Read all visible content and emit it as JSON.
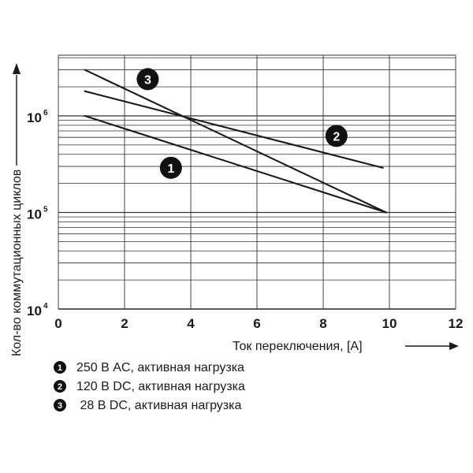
{
  "chart_data": {
    "type": "line",
    "xlabel": "Ток переключения, [A]",
    "ylabel": "Кол-во коммутационных циклов",
    "xlim": [
      0,
      12
    ],
    "ylim": [
      10000,
      4000000
    ],
    "y_scale": "log",
    "grid": true,
    "x_ticks": [
      "0",
      "2",
      "4",
      "6",
      "8",
      "10",
      "12"
    ],
    "y_ticks": [
      {
        "base": "10",
        "exp": "4",
        "value": 10000
      },
      {
        "base": "10",
        "exp": "5",
        "value": 100000
      },
      {
        "base": "10",
        "exp": "6",
        "value": 1000000
      }
    ],
    "series": [
      {
        "marker": "1",
        "name": "250 В AC, активная нагрузка",
        "color": "#1a1a1a",
        "x": [
          0.8,
          9.9
        ],
        "y": [
          1000000,
          100000
        ],
        "label_at": {
          "x": 3.4,
          "y": 290000
        }
      },
      {
        "marker": "2",
        "name": "120 В DC, активная нагрузка",
        "color": "#1a1a1a",
        "x": [
          0.8,
          9.8
        ],
        "y": [
          1800000,
          290000
        ],
        "label_at": {
          "x": 8.4,
          "y": 620000
        }
      },
      {
        "marker": "3",
        "name": "28 В DC, активная нагрузка",
        "color": "#1a1a1a",
        "x": [
          0.8,
          9.9
        ],
        "y": [
          3000000,
          100000
        ],
        "label_at": {
          "x": 2.7,
          "y": 2400000
        }
      }
    ],
    "legend": {
      "position": "bottom-left",
      "items": [
        {
          "marker": "1",
          "text": "250 В AC, активная нагрузка"
        },
        {
          "marker": "2",
          "text": "120 В DC, активная нагрузка"
        },
        {
          "marker": "3",
          "text": " 28 В DC, активная нагрузка"
        }
      ]
    },
    "colors": {
      "grid": "#333333",
      "line": "#1a1a1a",
      "marker_fill": "#111111"
    }
  }
}
